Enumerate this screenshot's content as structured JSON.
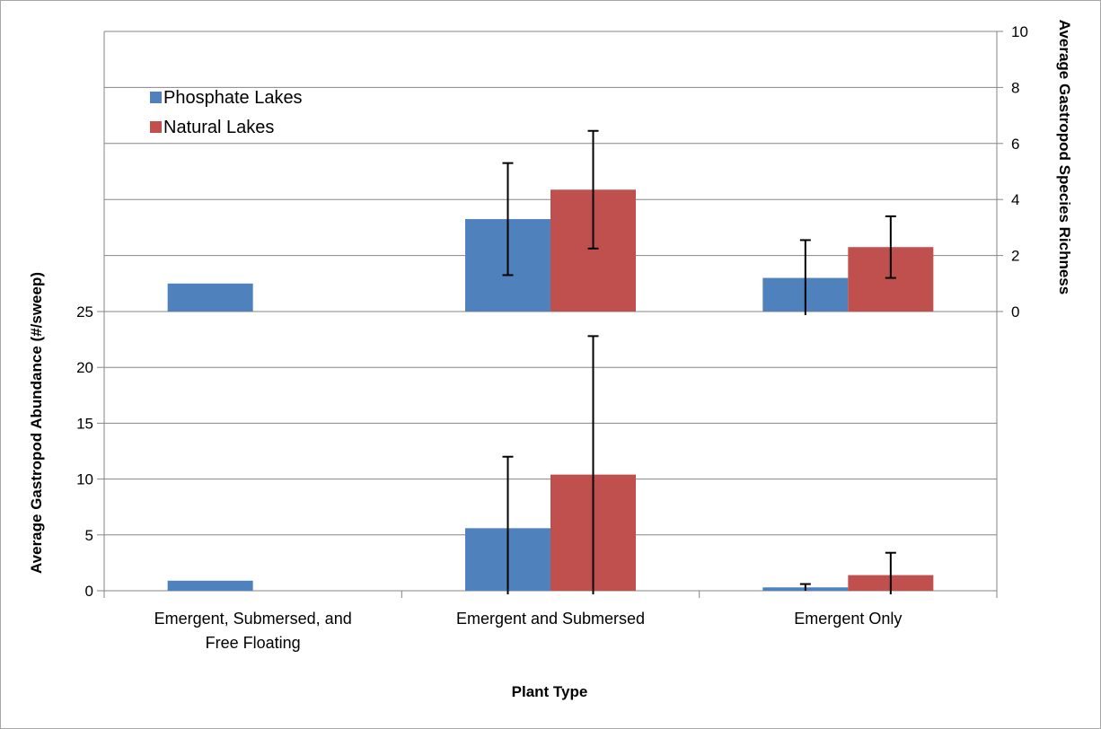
{
  "chart_data": {
    "type": "bar",
    "xlabel": "Plant Type",
    "categories": [
      [
        "Emergent, Submersed, and",
        "Free Floating"
      ],
      [
        "Emergent and Submersed"
      ],
      [
        "Emergent Only"
      ]
    ],
    "legend": {
      "placement": "top-left",
      "entries": [
        "Phosphate Lakes",
        "Natural Lakes"
      ]
    },
    "colors": {
      "phosphate": "#4f81bd",
      "natural": "#c0504d"
    },
    "panels": [
      {
        "name": "abundance",
        "axis": "left",
        "ylabel": "Average Gastropod Abundance (#/sweep)",
        "ylim": [
          0,
          25
        ],
        "yticks": [
          0,
          5,
          10,
          15,
          20,
          25
        ],
        "series": [
          {
            "name": "Phosphate Lakes",
            "values": [
              0.9,
              5.6,
              0.3
            ],
            "errors": [
              null,
              6.4,
              0.3
            ]
          },
          {
            "name": "Natural Lakes",
            "values": [
              null,
              10.4,
              1.4
            ],
            "errors": [
              null,
              12.4,
              2.0
            ]
          }
        ]
      },
      {
        "name": "richness",
        "axis": "right",
        "ylabel": "Average Gastropod Species Richness",
        "ylim": [
          0,
          10
        ],
        "yticks": [
          0,
          2,
          4,
          6,
          8,
          10
        ],
        "series": [
          {
            "name": "Phosphate Lakes",
            "values": [
              1.0,
              3.3,
              1.2
            ],
            "errors": [
              null,
              2.0,
              1.35
            ]
          },
          {
            "name": "Natural Lakes",
            "values": [
              null,
              4.35,
              2.3
            ],
            "errors": [
              null,
              2.1,
              1.1
            ]
          }
        ]
      }
    ]
  }
}
